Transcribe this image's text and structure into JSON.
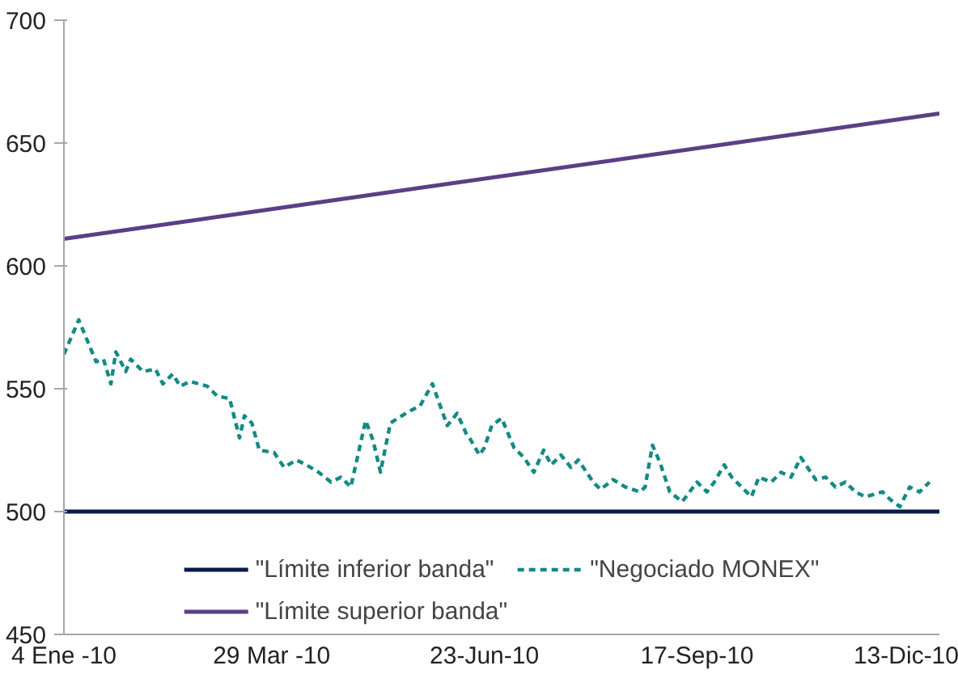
{
  "chart_data": {
    "type": "line",
    "xlim": [
      "2010-01-04",
      "2010-12-24"
    ],
    "xticks": [
      {
        "value": "2010-01-04",
        "label": "4 Ene -10"
      },
      {
        "value": "2010-03-29",
        "label": "29 Mar -10"
      },
      {
        "value": "2010-06-23",
        "label": "23-Jun-10"
      },
      {
        "value": "2010-09-17",
        "label": "17-Sep-10"
      },
      {
        "value": "2010-12-13",
        "label": "13-Dic-10"
      }
    ],
    "ylim": [
      450,
      700
    ],
    "yticks": [
      450,
      500,
      550,
      600,
      650,
      700
    ],
    "grid": false,
    "legend": "bottom",
    "marker": "none",
    "series": [
      {
        "name": "\"Límite inferior banda\"",
        "color": "#0b1a4a",
        "line_style": "solid",
        "x": [
          "2010-01-04",
          "2010-12-24"
        ],
        "values": [
          500,
          500
        ]
      },
      {
        "name": "\"Límite superior banda\"",
        "color": "#5b3f86",
        "line_style": "solid",
        "x": [
          "2010-01-04",
          "2010-12-24"
        ],
        "values": [
          611,
          662
        ]
      },
      {
        "name": "\"Negociado MONEX\"",
        "color": "#138a84",
        "line_style": "dashed",
        "x": [
          "2010-01-04",
          "2010-01-10",
          "2010-01-17",
          "2010-01-20",
          "2010-01-23",
          "2010-01-25",
          "2010-01-29",
          "2010-01-31",
          "2010-02-05",
          "2010-02-10",
          "2010-02-13",
          "2010-02-17",
          "2010-02-20",
          "2010-02-24",
          "2010-03-03",
          "2010-03-07",
          "2010-03-12",
          "2010-03-16",
          "2010-03-18",
          "2010-03-21",
          "2010-03-24",
          "2010-03-30",
          "2010-04-03",
          "2010-04-08",
          "2010-04-12",
          "2010-04-17",
          "2010-04-22",
          "2010-04-26",
          "2010-04-30",
          "2010-05-06",
          "2010-05-09",
          "2010-05-12",
          "2010-05-16",
          "2010-05-19",
          "2010-05-24",
          "2010-05-28",
          "2010-06-02",
          "2010-06-08",
          "2010-06-12",
          "2010-06-16",
          "2010-06-17",
          "2010-06-21",
          "2010-06-23",
          "2010-06-26",
          "2010-06-30",
          "2010-07-05",
          "2010-07-09",
          "2010-07-13",
          "2010-07-17",
          "2010-07-20",
          "2010-07-24",
          "2010-07-28",
          "2010-07-31",
          "2010-08-06",
          "2010-08-09",
          "2010-08-14",
          "2010-08-19",
          "2010-08-25",
          "2010-08-27",
          "2010-08-30",
          "2010-09-02",
          "2010-09-06",
          "2010-09-11",
          "2010-09-17",
          "2010-09-21",
          "2010-09-24",
          "2010-09-28",
          "2010-10-01",
          "2010-10-05",
          "2010-10-09",
          "2010-10-12",
          "2010-10-17",
          "2010-10-21",
          "2010-10-25",
          "2010-10-29",
          "2010-11-04",
          "2010-11-08",
          "2010-11-12",
          "2010-11-16",
          "2010-11-20",
          "2010-11-24",
          "2010-12-01",
          "2010-12-04",
          "2010-12-08",
          "2010-12-12",
          "2010-12-16",
          "2010-12-20"
        ],
        "values": [
          564,
          578,
          561,
          562,
          552,
          565,
          557,
          562,
          557,
          558,
          552,
          556,
          551,
          553,
          551,
          547,
          546,
          530,
          539,
          536,
          525,
          524,
          518,
          521,
          519,
          516,
          512,
          514,
          510,
          537,
          529,
          516,
          536,
          538,
          541,
          543,
          552,
          535,
          540,
          531,
          530,
          523,
          526,
          535,
          538,
          526,
          522,
          516,
          525,
          519,
          523,
          518,
          521,
          512,
          509,
          513,
          510,
          508,
          510,
          527,
          520,
          508,
          504,
          512,
          508,
          512,
          519,
          514,
          510,
          506,
          514,
          512,
          516,
          514,
          522,
          513,
          514,
          510,
          512,
          508,
          506,
          508,
          505,
          502,
          510,
          508,
          512
        ]
      }
    ]
  }
}
